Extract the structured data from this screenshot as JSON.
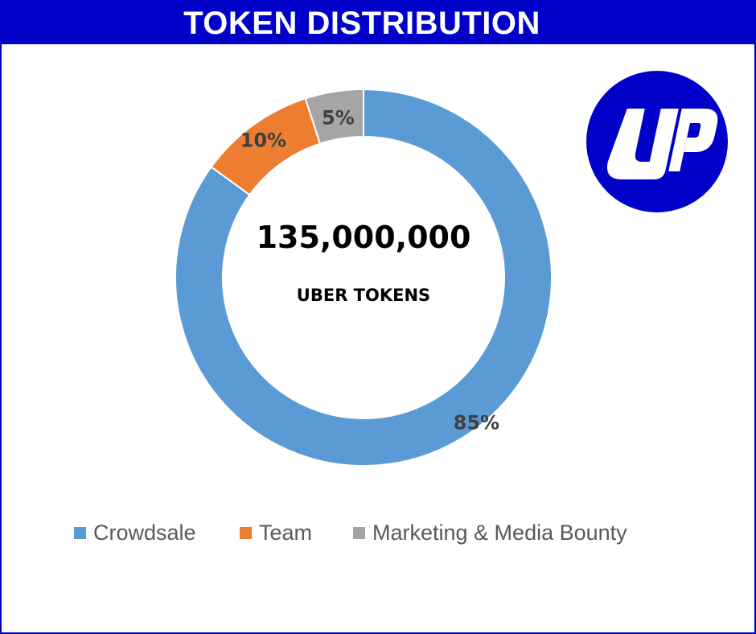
{
  "title": "TOKEN DISTRIBUTION",
  "colors": {
    "brand": "#0000c8",
    "crowdsale": "#5b9bd5",
    "team": "#ed7d31",
    "marketing": "#a5a5a5"
  },
  "logo": {
    "text": "UP",
    "icon": "up-logo-icon"
  },
  "center": {
    "amount": "135,000,000",
    "unit": "UBER TOKENS"
  },
  "chart_data": {
    "type": "pie",
    "subtype": "doughnut",
    "title": "TOKEN DISTRIBUTION",
    "legend_position": "bottom",
    "series": [
      {
        "name": "Crowdsale",
        "value": 85,
        "label": "85%",
        "color": "#5b9bd5"
      },
      {
        "name": "Team",
        "value": 10,
        "label": "10%",
        "color": "#ed7d31"
      },
      {
        "name": "Marketing & Media Bounty",
        "value": 5,
        "label": "5%",
        "color": "#a5a5a5"
      }
    ]
  }
}
